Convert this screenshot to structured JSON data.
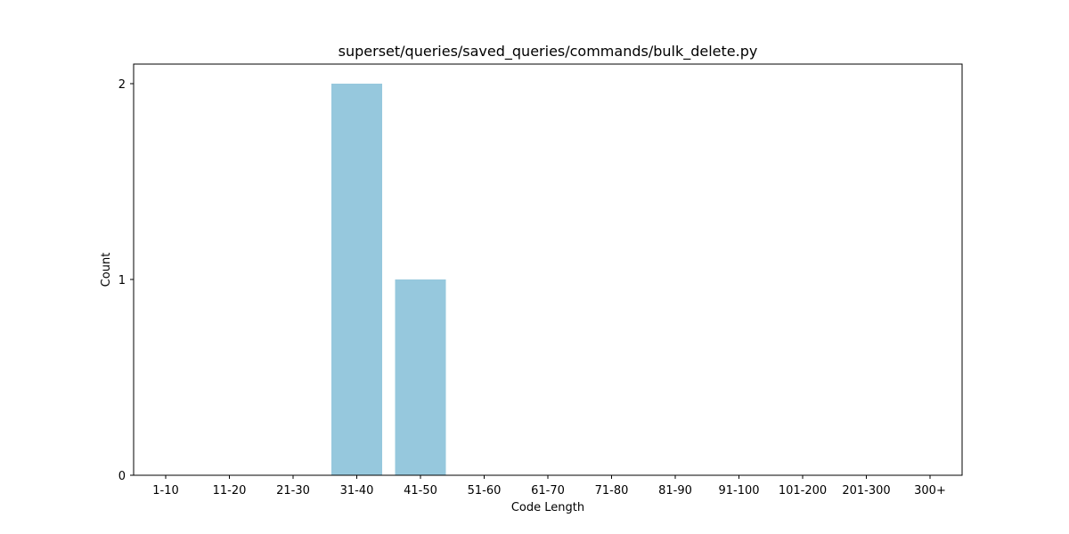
{
  "chart_data": {
    "type": "bar",
    "title": "superset/queries/saved_queries/commands/bulk_delete.py",
    "xlabel": "Code Length",
    "ylabel": "Count",
    "categories": [
      "1-10",
      "11-20",
      "21-30",
      "31-40",
      "41-50",
      "51-60",
      "61-70",
      "71-80",
      "81-90",
      "91-100",
      "101-200",
      "201-300",
      "300+"
    ],
    "values": [
      0,
      0,
      0,
      2,
      1,
      0,
      0,
      0,
      0,
      0,
      0,
      0,
      0
    ],
    "ylim": [
      0,
      2.1
    ],
    "yticks": [
      0,
      1,
      2
    ],
    "grid": false,
    "bar_color": "#96c8dd",
    "legend": null
  }
}
